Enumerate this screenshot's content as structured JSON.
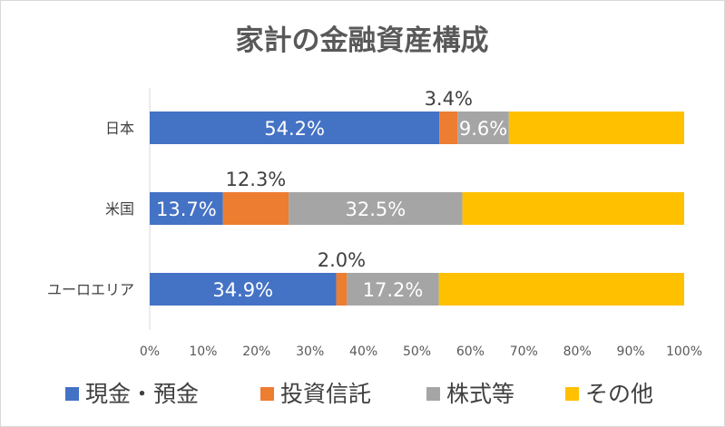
{
  "chart_data": {
    "type": "bar",
    "orientation": "horizontal",
    "stacked": "percent",
    "title": "家計の金融資産構成",
    "categories": [
      "日本",
      "米国",
      "ユーロエリア"
    ],
    "series": [
      {
        "name": "現金・預金",
        "color": "#4472C4",
        "values": [
          54.2,
          13.7,
          34.9
        ],
        "labels": [
          "54.2%",
          "13.7%",
          "34.9%"
        ],
        "label_pos": [
          "inside",
          "inside",
          "inside"
        ]
      },
      {
        "name": "投資信託",
        "color": "#ED7D31",
        "values": [
          3.4,
          12.3,
          2.0
        ],
        "labels": [
          "3.4%",
          "12.3%",
          "2.0%"
        ],
        "label_pos": [
          "above",
          "above",
          "above"
        ]
      },
      {
        "name": "株式等",
        "color": "#A5A5A5",
        "values": [
          9.6,
          32.5,
          17.2
        ],
        "labels": [
          "9.6%",
          "32.5%",
          "17.2%"
        ],
        "label_pos": [
          "inside",
          "inside",
          "inside"
        ]
      },
      {
        "name": "その他",
        "color": "#FFC000",
        "values": [
          32.8,
          41.5,
          45.9
        ],
        "labels": [
          "",
          "",
          ""
        ],
        "label_pos": [
          "none",
          "none",
          "none"
        ]
      }
    ],
    "xlim": [
      0,
      100
    ],
    "xticks": [
      "0%",
      "10%",
      "20%",
      "30%",
      "40%",
      "50%",
      "60%",
      "70%",
      "80%",
      "90%",
      "100%"
    ],
    "grid": false,
    "legend_position": "bottom"
  }
}
